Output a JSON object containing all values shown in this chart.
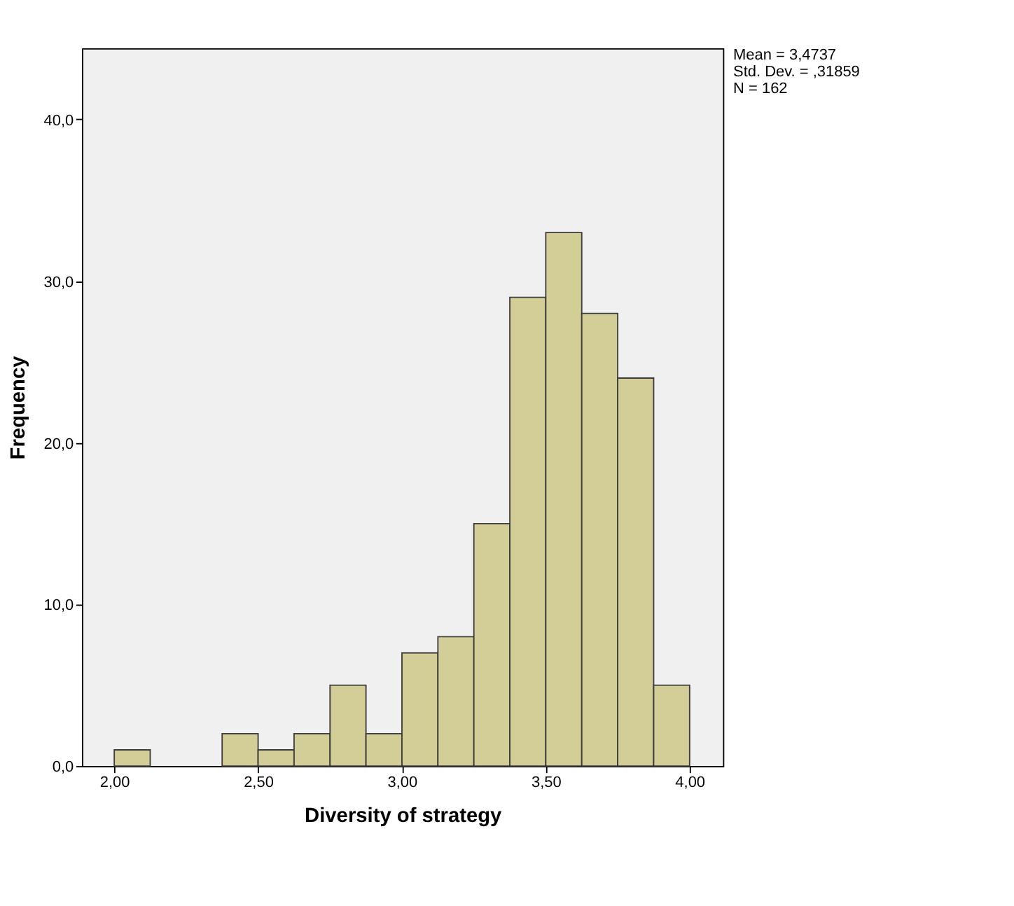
{
  "chart_data": {
    "type": "histogram",
    "xlabel": "Diversity of strategy",
    "ylabel": "Frequency",
    "bins": [
      2.0,
      2.125,
      2.25,
      2.375,
      2.5,
      2.625,
      2.75,
      2.875,
      3.0,
      3.125,
      3.25,
      3.375,
      3.5,
      3.625,
      3.75,
      3.875,
      4.0
    ],
    "values": [
      1,
      0,
      0,
      2,
      1,
      2,
      5,
      2,
      7,
      8,
      15,
      29,
      33,
      28,
      24,
      5
    ],
    "color": "#d3ce97",
    "xlim": [
      1.888,
      4.116
    ],
    "ylim": [
      0,
      44.4
    ],
    "xticks": [
      {
        "value": 2,
        "label": "2,00"
      },
      {
        "value": 2.5,
        "label": "2,50"
      },
      {
        "value": 3,
        "label": "3,00"
      },
      {
        "value": 3.5,
        "label": "3,50"
      },
      {
        "value": 4,
        "label": "4,00"
      }
    ],
    "yticks": [
      {
        "value": 0,
        "label": "0,0"
      },
      {
        "value": 10,
        "label": "10,0"
      },
      {
        "value": 20,
        "label": "20,0"
      },
      {
        "value": 30,
        "label": "30,0"
      },
      {
        "value": 40,
        "label": "40,0"
      }
    ],
    "grid": false,
    "annotations": [
      "Mean = 3,4737",
      "Std. Dev. = ,31859",
      "N = 162"
    ]
  }
}
